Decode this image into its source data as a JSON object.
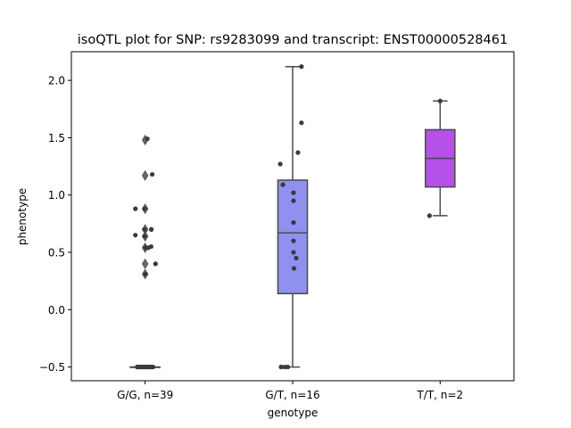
{
  "chart_data": {
    "type": "box",
    "title": "isoQTL plot for SNP: rs9283099 and transcript: ENST00000528461",
    "xlabel": "genotype",
    "ylabel": "phenotype",
    "ylim": [
      -0.62,
      2.25
    ],
    "yticks": [
      -0.5,
      0.0,
      0.5,
      1.0,
      1.5,
      2.0
    ],
    "ytick_labels": [
      "−0.5",
      "0.0",
      "0.5",
      "1.0",
      "1.5",
      "2.0"
    ],
    "grid": false,
    "categories": [
      "G/G, n=39",
      "G/T, n=16",
      "T/T, n=2"
    ],
    "colors": [
      "#8c8c8c",
      "#9090f0",
      "#b550e8"
    ],
    "boxes": [
      {
        "category": "G/G, n=39",
        "q1": -0.5,
        "median": -0.5,
        "q3": -0.5,
        "whisker_low": -0.5,
        "whisker_high": -0.5,
        "outliers": [
          1.48,
          1.17,
          0.88,
          0.7,
          0.64,
          0.54,
          0.4,
          0.31
        ]
      },
      {
        "category": "G/T, n=16",
        "q1": 0.14,
        "median": 0.67,
        "q3": 1.13,
        "whisker_low": -0.5,
        "whisker_high": 2.12,
        "outliers": []
      },
      {
        "category": "T/T, n=2",
        "q1": 1.07,
        "median": 1.32,
        "q3": 1.57,
        "whisker_low": 0.82,
        "whisker_high": 1.82,
        "outliers": []
      }
    ],
    "points": [
      {
        "category": "G/G, n=39",
        "offsets": [
          -0.36,
          -0.3,
          -0.26,
          -0.22,
          -0.18,
          -0.14,
          -0.1,
          -0.06,
          -0.02,
          0.02,
          0.06,
          0.1,
          0.14,
          0.18,
          0.22,
          0.26,
          0.3,
          0.36,
          -0.33,
          -0.12,
          0.08,
          0.24,
          -0.28,
          0.04,
          0.32,
          0.1,
          0.32,
          -0.03,
          0.28,
          -0.03,
          0.28,
          -0.44,
          -0.03,
          -0.44,
          0.27,
          0.14,
          0.02,
          0.47,
          0.02
        ],
        "values": [
          -0.5,
          -0.5,
          -0.5,
          -0.5,
          -0.5,
          -0.5,
          -0.5,
          -0.5,
          -0.5,
          -0.5,
          -0.5,
          -0.5,
          -0.5,
          -0.5,
          -0.5,
          -0.5,
          -0.5,
          -0.5,
          -0.5,
          -0.5,
          -0.5,
          -0.5,
          -0.5,
          -0.5,
          -0.5,
          1.49,
          1.18,
          0.88,
          0.7,
          0.7,
          0.7,
          0.88,
          0.64,
          0.65,
          0.55,
          0.54,
          0.54,
          0.4,
          0.31
        ]
      },
      {
        "category": "G/T, n=16",
        "offsets": [
          -0.52,
          -0.52,
          0.4,
          0.4,
          -0.56,
          -0.44,
          0.04,
          0.04,
          0.04,
          -0.36,
          0.16,
          0.04,
          0.04,
          0.24,
          0.06,
          -0.22
        ],
        "values": [
          -0.5,
          -0.5,
          2.12,
          1.63,
          1.27,
          1.09,
          1.02,
          0.95,
          0.76,
          -0.5,
          0.45,
          0.6,
          0.5,
          1.37,
          0.36,
          -0.5
        ]
      },
      {
        "category": "T/T, n=2",
        "offsets": [
          0.0,
          -0.48
        ],
        "values": [
          1.82,
          0.82
        ]
      }
    ]
  }
}
